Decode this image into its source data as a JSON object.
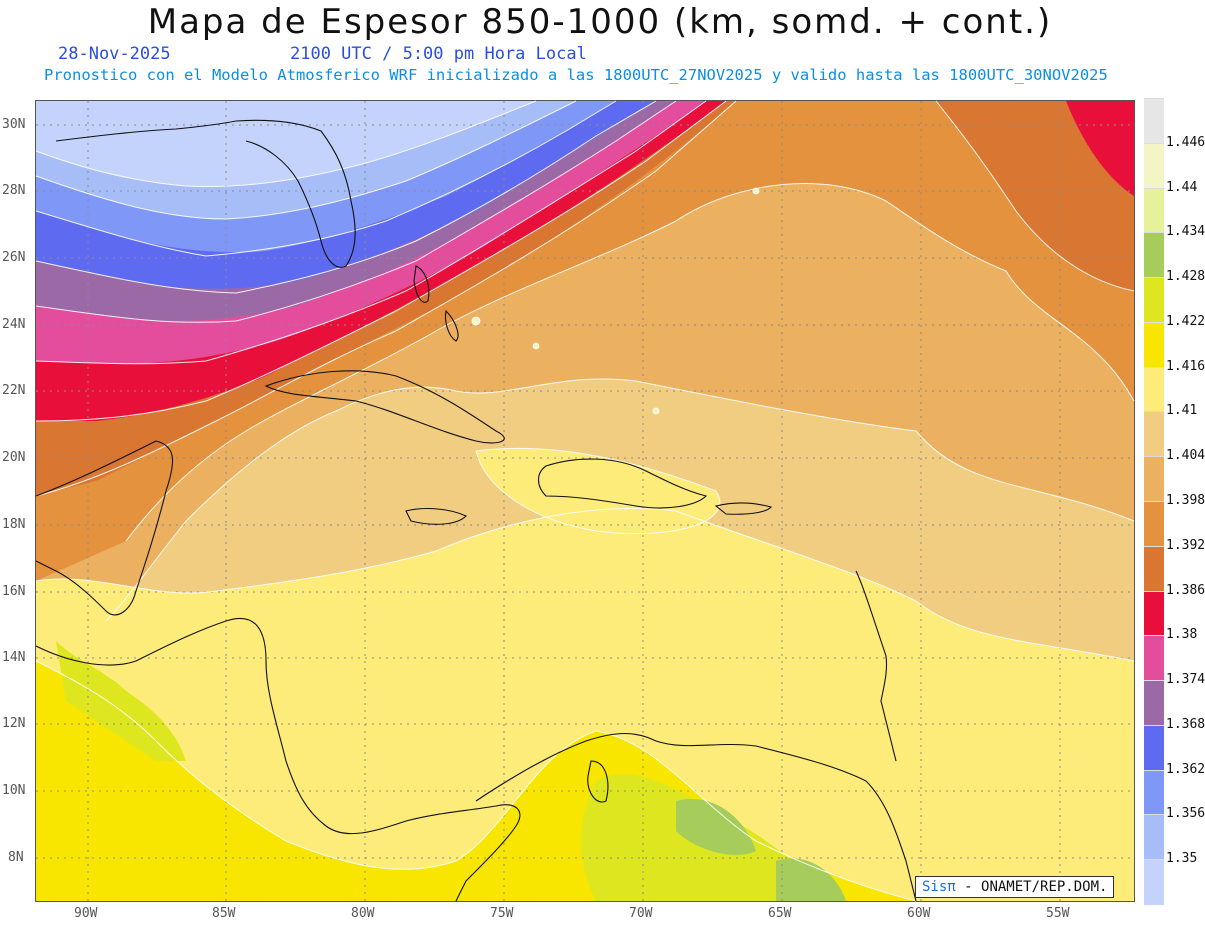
{
  "header": {
    "title": "Mapa de Espesor 850-1000 (km, somd. + cont.)",
    "date": "28-Nov-2025",
    "time": "2100 UTC / 5:00 pm Hora Local",
    "forecast_note": "Pronostico con el Modelo Atmosferico WRF inicializado a las 1800UTC_27NOV2025 y valido hasta las  1800UTC_30NOV2025"
  },
  "map": {
    "lat_ticks": [
      "30N",
      "28N",
      "26N",
      "24N",
      "22N",
      "20N",
      "18N",
      "16N",
      "14N",
      "12N",
      "10N",
      "8N"
    ],
    "lon_ticks": [
      "90W",
      "85W",
      "80W",
      "75W",
      "70W",
      "65W",
      "60W",
      "55W"
    ]
  },
  "colorbar": {
    "levels": [
      "1.446",
      "1.44",
      "1.434",
      "1.428",
      "1.422",
      "1.416",
      "1.41",
      "1.404",
      "1.398",
      "1.392",
      "1.386",
      "1.38",
      "1.374",
      "1.368",
      "1.362",
      "1.356",
      "1.35"
    ],
    "colors": [
      "#e6e6e6",
      "#f3f5c4",
      "#e6f29a",
      "#a6cc5c",
      "#dde61e",
      "#f8e600",
      "#fdeb7a",
      "#f1cd82",
      "#ebb060",
      "#e4923d",
      "#d87632",
      "#e8103a",
      "#e34d9c",
      "#9b6aa6",
      "#5e6af0",
      "#7f97f7",
      "#a6bdf8",
      "#c4d3fb"
    ]
  },
  "credit": {
    "sis": "Sisπ",
    "text": "- ONAMET/REP.DOM."
  }
}
